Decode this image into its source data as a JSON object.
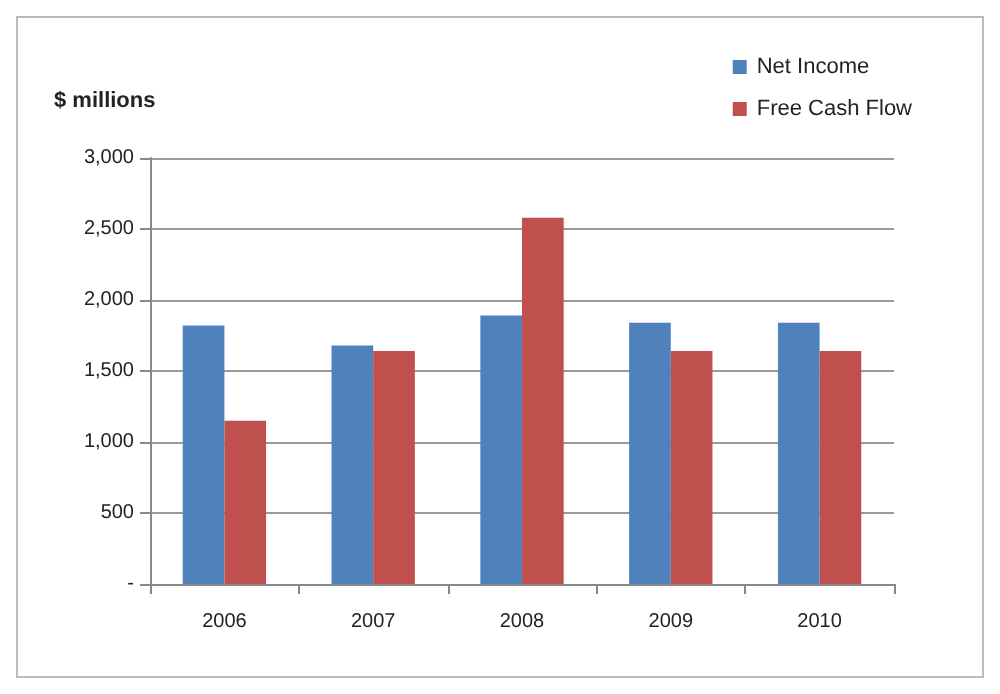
{
  "chart_data": {
    "type": "bar",
    "ylabel": "$ millions",
    "categories": [
      "2006",
      "2007",
      "2008",
      "2009",
      "2010"
    ],
    "series": [
      {
        "name": "Net Income",
        "color": "#4f81bd",
        "values": [
          1820,
          1680,
          1890,
          1840,
          1840
        ]
      },
      {
        "name": "Free Cash Flow",
        "color": "#c0504d",
        "values": [
          1150,
          1640,
          2580,
          1640,
          1640
        ]
      }
    ],
    "ylim": [
      0,
      3000
    ],
    "yticks": [
      {
        "value": 0,
        "label": "-"
      },
      500,
      {
        "value": 1000,
        "label": "1,000"
      },
      {
        "value": 1500,
        "label": "1,500"
      },
      {
        "value": 2000,
        "label": "2,000"
      },
      {
        "value": 2500,
        "label": "2,500"
      },
      {
        "value": 3000,
        "label": "3,000"
      }
    ],
    "grid": "y",
    "legend": "top right"
  }
}
